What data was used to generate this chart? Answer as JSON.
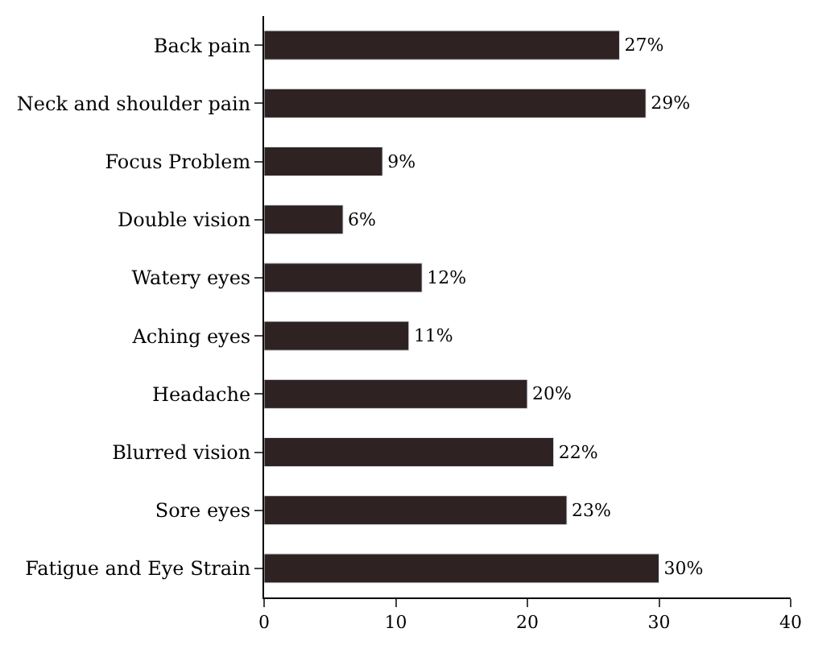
{
  "chart_data": {
    "type": "bar",
    "orientation": "horizontal",
    "categories": [
      "Back pain",
      "Neck and shoulder pain",
      "Focus Problem",
      "Double vision",
      "Watery eyes",
      "Aching eyes",
      "Headache",
      "Blurred vision",
      "Sore eyes",
      "Fatigue and Eye Strain"
    ],
    "values": [
      27,
      29,
      9,
      6,
      12,
      11,
      20,
      22,
      23,
      30
    ],
    "value_labels": [
      "27%",
      "29%",
      "9%",
      "6%",
      "12%",
      "11%",
      "20%",
      "22%",
      "23%",
      "30%"
    ],
    "color": "#2e2222",
    "xlim": [
      0,
      40
    ],
    "xticks": [
      0,
      10,
      20,
      30,
      40
    ]
  }
}
